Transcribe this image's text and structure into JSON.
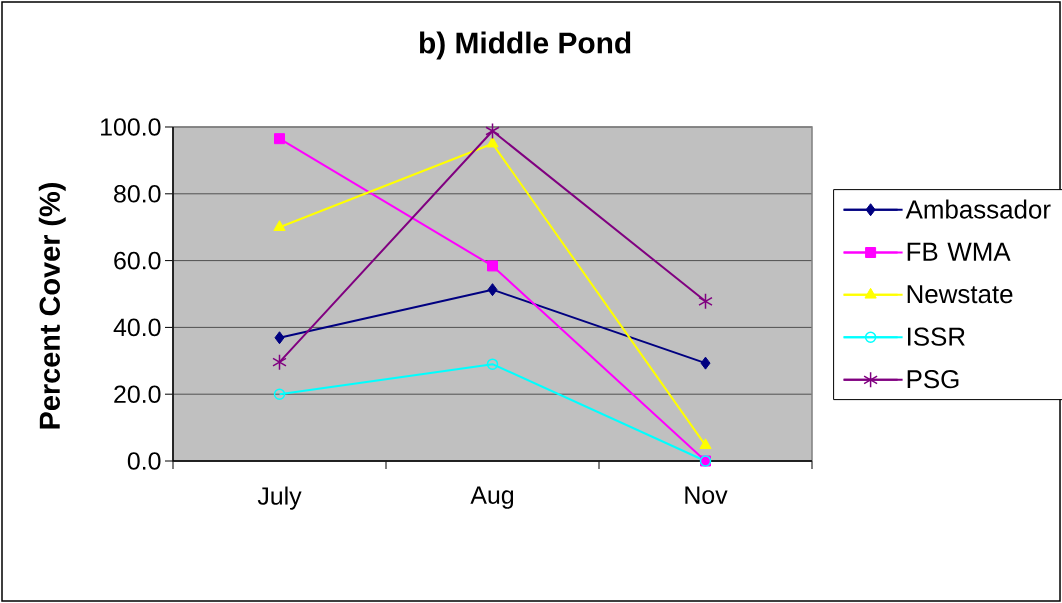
{
  "chart_data": {
    "type": "line",
    "title": "b) Middle Pond",
    "ylabel": "Percent Cover (%)",
    "categories": [
      "July",
      "Aug",
      "Nov"
    ],
    "series": [
      {
        "name": "Ambassador",
        "color": "#000080",
        "marker": "diamond",
        "values": [
          36.9,
          51.3,
          29.3
        ]
      },
      {
        "name": "FB WMA",
        "color": "#ff00ff",
        "marker": "square",
        "values": [
          96.5,
          58.4,
          0
        ]
      },
      {
        "name": "Newstate",
        "color": "#ffff00",
        "marker": "triangle",
        "values": [
          70.0,
          95.0,
          4.7
        ]
      },
      {
        "name": "ISSR",
        "color": "#00ffff",
        "marker": "circle",
        "values": [
          20.0,
          29.0,
          0
        ]
      },
      {
        "name": "PSG",
        "color": "#800080",
        "marker": "cross",
        "values": [
          29.6,
          98.8,
          47.8
        ]
      }
    ],
    "ylim": [
      0,
      100
    ],
    "yticks": [
      {
        "value": 0,
        "label": "0.0"
      },
      {
        "value": 20,
        "label": "20.0"
      },
      {
        "value": 40,
        "label": "40.0"
      },
      {
        "value": 60,
        "label": "60.0"
      },
      {
        "value": 80,
        "label": "80.0"
      },
      {
        "value": 100,
        "label": "100.0"
      }
    ],
    "grid": "y",
    "legend": "right",
    "line_style": "solid"
  }
}
